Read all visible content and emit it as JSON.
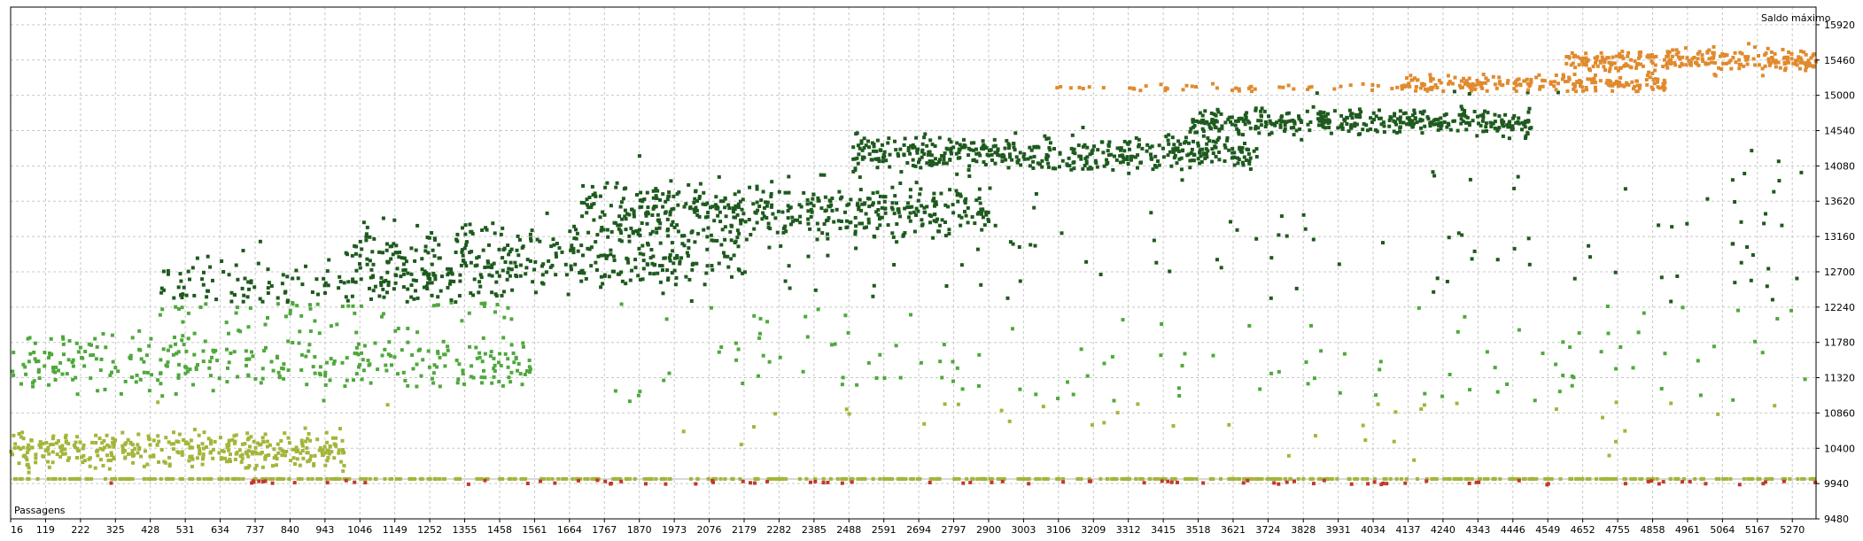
{
  "chart_data": {
    "type": "scatter",
    "title": "",
    "xlabel": "Passagens",
    "ylabel": "Saldo máximo",
    "xlim": [
      16,
      5340
    ],
    "ylim": [
      9480,
      16150
    ],
    "x_ticks": [
      16,
      119,
      222,
      325,
      428,
      531,
      634,
      737,
      840,
      943,
      1046,
      1149,
      1252,
      1355,
      1458,
      1561,
      1664,
      1767,
      1870,
      1973,
      2076,
      2179,
      2282,
      2385,
      2488,
      2591,
      2694,
      2797,
      2900,
      3003,
      3106,
      3209,
      3312,
      3415,
      3518,
      3621,
      3724,
      3828,
      3931,
      4034,
      4137,
      4240,
      4343,
      4446,
      4549,
      4652,
      4755,
      4858,
      4961,
      5064,
      5167,
      5270
    ],
    "x_tick_labels": [
      "16",
      "119",
      "222",
      "325",
      "428",
      "531",
      "634",
      "737",
      "840",
      "943",
      "1046",
      "1149",
      "1252",
      "1355",
      "1458",
      "1561",
      "1664",
      "1767",
      "1870",
      "1973",
      "2076",
      "2179",
      "2282",
      "2385",
      "2488",
      "2591",
      "2694",
      "2797",
      "2900",
      "3003",
      "3106",
      "3209",
      "3312",
      "3415",
      "3518",
      "3621",
      "3724",
      "3828",
      "3931",
      "4034",
      "4137",
      "4240",
      "4343",
      "4446",
      "4549",
      "4652",
      "4755",
      "4858",
      "4961",
      "5064",
      "5167",
      "5270"
    ],
    "y_ticks": [
      9480,
      9940,
      10400,
      10860,
      11320,
      11780,
      12240,
      12700,
      13160,
      13620,
      14080,
      14540,
      15000,
      15460,
      15920
    ],
    "y_tick_labels": [
      "9480",
      "9940",
      "10400",
      "10860",
      "11320",
      "11780",
      "12240",
      "12700",
      "13160",
      "13620",
      "14080",
      "14540",
      "15000",
      "15460",
      "15920"
    ],
    "grid": true,
    "baseline_value": 10000,
    "color_bands": [
      {
        "min": 0,
        "max": 10000,
        "color": "#c0392b"
      },
      {
        "min": 10000,
        "max": 11000,
        "color": "#a4b53a"
      },
      {
        "min": 11000,
        "max": 12300,
        "color": "#4fa83d"
      },
      {
        "min": 12300,
        "max": 15050,
        "color": "#1e5a1e"
      },
      {
        "min": 15050,
        "max": 99999,
        "color": "#e08a2e"
      }
    ],
    "series": [
      {
        "clusters": [
          {
            "x_from": 16,
            "x_to": 5340,
            "y_center": 10000,
            "y_spread": 0,
            "count": 520
          },
          {
            "x_from": 16,
            "x_to": 1000,
            "y_center": 10380,
            "y_spread": 340,
            "count": 380
          },
          {
            "x_from": 16,
            "x_to": 1550,
            "y_center": 11520,
            "y_spread": 620,
            "count": 340
          },
          {
            "x_from": 450,
            "x_to": 1500,
            "y_center": 12450,
            "y_spread": 700,
            "count": 220
          },
          {
            "x_from": 1000,
            "x_to": 2200,
            "y_center": 12900,
            "y_spread": 680,
            "count": 380
          },
          {
            "x_from": 1700,
            "x_to": 2900,
            "y_center": 13500,
            "y_spread": 560,
            "count": 460
          },
          {
            "x_from": 2500,
            "x_to": 3700,
            "y_center": 14250,
            "y_spread": 360,
            "count": 460
          },
          {
            "x_from": 3500,
            "x_to": 4500,
            "y_center": 14650,
            "y_spread": 240,
            "count": 380
          },
          {
            "x_from": 4100,
            "x_to": 4900,
            "y_center": 15150,
            "y_spread": 160,
            "count": 220
          },
          {
            "x_from": 4600,
            "x_to": 5340,
            "y_center": 15460,
            "y_spread": 240,
            "count": 260
          },
          {
            "x_from": 3100,
            "x_to": 4200,
            "y_center": 15100,
            "y_spread": 80,
            "count": 50
          },
          {
            "x_from": 16,
            "x_to": 5340,
            "y_center": 9955,
            "y_spread": 40,
            "count": 90
          },
          {
            "x_from": 1800,
            "x_to": 5340,
            "y_center": 11500,
            "y_spread": 1600,
            "count": 170
          },
          {
            "x_from": 1800,
            "x_to": 5340,
            "y_center": 13200,
            "y_spread": 1400,
            "count": 120
          }
        ]
      }
    ]
  }
}
